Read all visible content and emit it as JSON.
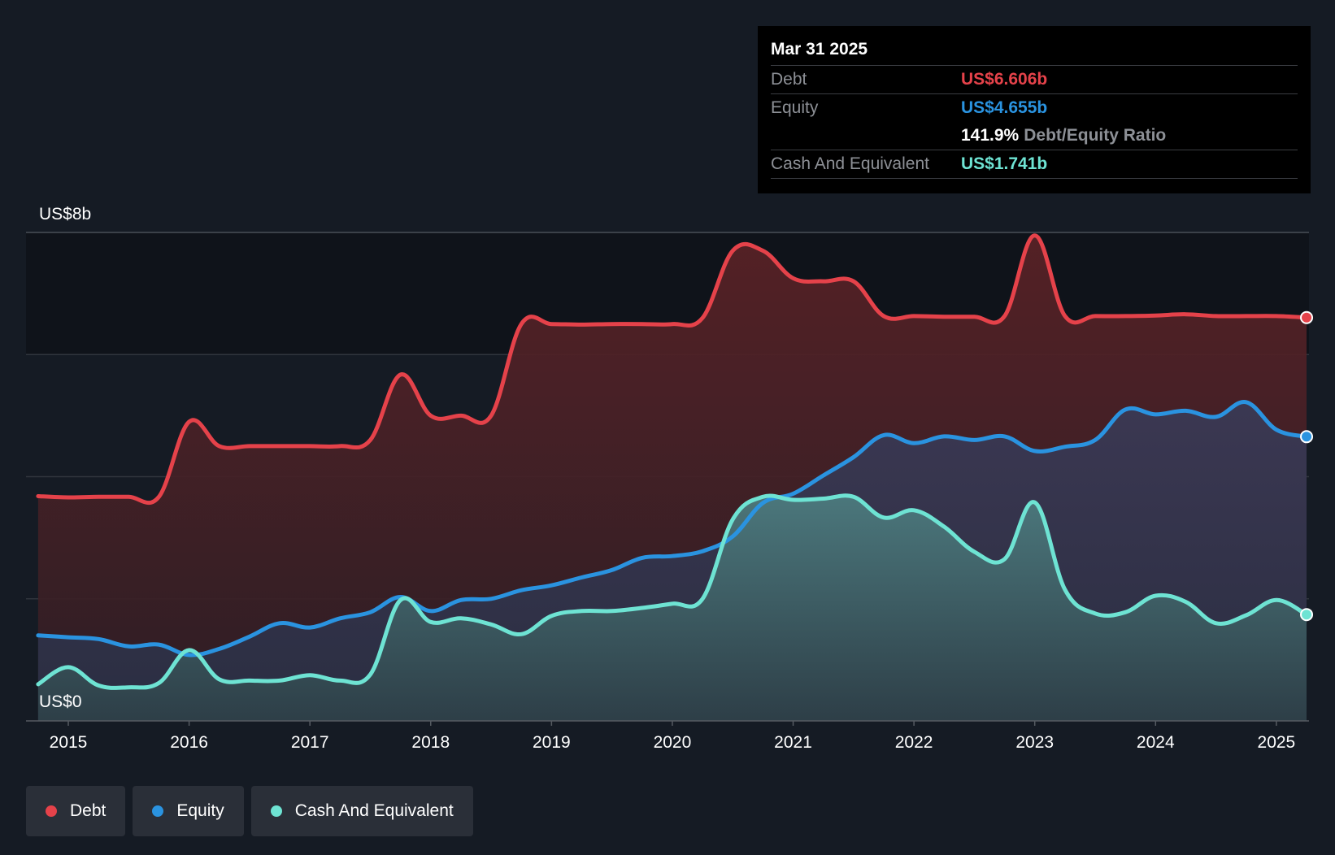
{
  "tooltip": {
    "date": "Mar 31 2025",
    "debt_label": "Debt",
    "debt_value": "US$6.606b",
    "equity_label": "Equity",
    "equity_value": "US$4.655b",
    "ratio_value": "141.9%",
    "ratio_label": "Debt/Equity Ratio",
    "cash_label": "Cash And Equivalent",
    "cash_value": "US$1.741b"
  },
  "legend": [
    {
      "label": "Debt",
      "color": "#e5424a"
    },
    {
      "label": "Equity",
      "color": "#2a93e0"
    },
    {
      "label": "Cash And Equivalent",
      "color": "#6ee3d3"
    }
  ],
  "chart_data": {
    "type": "area",
    "title": "",
    "xlabel": "",
    "ylabel": "",
    "y_top_label": "US$8b",
    "y_bottom_label": "US$0",
    "ylim": [
      0,
      8
    ],
    "xlim": [
      2014.65,
      2025.27
    ],
    "x_ticks": [
      2015,
      2016,
      2017,
      2018,
      2019,
      2020,
      2021,
      2022,
      2023,
      2024,
      2025
    ],
    "grid": true,
    "legend_position": "bottom-left",
    "series": [
      {
        "name": "Debt",
        "color": "#e5424a",
        "points": [
          [
            2014.75,
            3.68
          ],
          [
            2015.0,
            3.66
          ],
          [
            2015.25,
            3.67
          ],
          [
            2015.5,
            3.67
          ],
          [
            2015.75,
            3.67
          ],
          [
            2016.0,
            4.9
          ],
          [
            2016.25,
            4.5
          ],
          [
            2016.5,
            4.5
          ],
          [
            2016.75,
            4.5
          ],
          [
            2017.0,
            4.5
          ],
          [
            2017.25,
            4.5
          ],
          [
            2017.5,
            4.6
          ],
          [
            2017.75,
            5.67
          ],
          [
            2018.0,
            5.0
          ],
          [
            2018.25,
            5.0
          ],
          [
            2018.5,
            5.0
          ],
          [
            2018.75,
            6.5
          ],
          [
            2019.0,
            6.5
          ],
          [
            2019.25,
            6.49
          ],
          [
            2019.5,
            6.5
          ],
          [
            2019.75,
            6.5
          ],
          [
            2020.0,
            6.5
          ],
          [
            2020.25,
            6.6
          ],
          [
            2020.5,
            7.7
          ],
          [
            2020.75,
            7.7
          ],
          [
            2021.0,
            7.25
          ],
          [
            2021.25,
            7.2
          ],
          [
            2021.5,
            7.2
          ],
          [
            2021.75,
            6.63
          ],
          [
            2022.0,
            6.63
          ],
          [
            2022.25,
            6.62
          ],
          [
            2022.5,
            6.62
          ],
          [
            2022.75,
            6.63
          ],
          [
            2023.0,
            7.95
          ],
          [
            2023.25,
            6.63
          ],
          [
            2023.5,
            6.63
          ],
          [
            2023.75,
            6.63
          ],
          [
            2024.0,
            6.64
          ],
          [
            2024.25,
            6.66
          ],
          [
            2024.5,
            6.63
          ],
          [
            2024.75,
            6.63
          ],
          [
            2025.0,
            6.63
          ],
          [
            2025.25,
            6.606
          ]
        ]
      },
      {
        "name": "Equity",
        "color": "#2a93e0",
        "points": [
          [
            2014.75,
            1.4
          ],
          [
            2015.0,
            1.37
          ],
          [
            2015.25,
            1.34
          ],
          [
            2015.5,
            1.22
          ],
          [
            2015.75,
            1.25
          ],
          [
            2016.0,
            1.08
          ],
          [
            2016.25,
            1.18
          ],
          [
            2016.5,
            1.38
          ],
          [
            2016.75,
            1.6
          ],
          [
            2017.0,
            1.53
          ],
          [
            2017.25,
            1.68
          ],
          [
            2017.5,
            1.78
          ],
          [
            2017.75,
            2.03
          ],
          [
            2018.0,
            1.8
          ],
          [
            2018.25,
            1.98
          ],
          [
            2018.5,
            2.0
          ],
          [
            2018.75,
            2.14
          ],
          [
            2019.0,
            2.22
          ],
          [
            2019.25,
            2.35
          ],
          [
            2019.5,
            2.47
          ],
          [
            2019.75,
            2.67
          ],
          [
            2020.0,
            2.7
          ],
          [
            2020.25,
            2.78
          ],
          [
            2020.5,
            3.02
          ],
          [
            2020.75,
            3.57
          ],
          [
            2021.0,
            3.72
          ],
          [
            2021.25,
            4.02
          ],
          [
            2021.5,
            4.32
          ],
          [
            2021.75,
            4.68
          ],
          [
            2022.0,
            4.55
          ],
          [
            2022.25,
            4.66
          ],
          [
            2022.5,
            4.6
          ],
          [
            2022.75,
            4.66
          ],
          [
            2023.0,
            4.42
          ],
          [
            2023.25,
            4.49
          ],
          [
            2023.5,
            4.6
          ],
          [
            2023.75,
            5.1
          ],
          [
            2024.0,
            5.02
          ],
          [
            2024.25,
            5.08
          ],
          [
            2024.5,
            4.98
          ],
          [
            2024.75,
            5.22
          ],
          [
            2025.0,
            4.77
          ],
          [
            2025.25,
            4.655
          ]
        ]
      },
      {
        "name": "Cash And Equivalent",
        "color": "#6ee3d3",
        "points": [
          [
            2014.75,
            0.6
          ],
          [
            2015.0,
            0.88
          ],
          [
            2015.25,
            0.58
          ],
          [
            2015.5,
            0.55
          ],
          [
            2015.75,
            0.62
          ],
          [
            2016.0,
            1.16
          ],
          [
            2016.25,
            0.68
          ],
          [
            2016.5,
            0.66
          ],
          [
            2016.75,
            0.66
          ],
          [
            2017.0,
            0.75
          ],
          [
            2017.25,
            0.66
          ],
          [
            2017.5,
            0.76
          ],
          [
            2017.75,
            1.98
          ],
          [
            2018.0,
            1.62
          ],
          [
            2018.25,
            1.68
          ],
          [
            2018.5,
            1.58
          ],
          [
            2018.75,
            1.42
          ],
          [
            2019.0,
            1.72
          ],
          [
            2019.25,
            1.8
          ],
          [
            2019.5,
            1.8
          ],
          [
            2019.75,
            1.85
          ],
          [
            2020.0,
            1.92
          ],
          [
            2020.25,
            2.0
          ],
          [
            2020.5,
            3.3
          ],
          [
            2020.75,
            3.67
          ],
          [
            2021.0,
            3.62
          ],
          [
            2021.25,
            3.64
          ],
          [
            2021.5,
            3.67
          ],
          [
            2021.75,
            3.33
          ],
          [
            2022.0,
            3.45
          ],
          [
            2022.25,
            3.18
          ],
          [
            2022.5,
            2.77
          ],
          [
            2022.75,
            2.65
          ],
          [
            2023.0,
            3.58
          ],
          [
            2023.25,
            2.15
          ],
          [
            2023.5,
            1.76
          ],
          [
            2023.75,
            1.78
          ],
          [
            2024.0,
            2.05
          ],
          [
            2024.25,
            1.95
          ],
          [
            2024.5,
            1.6
          ],
          [
            2024.75,
            1.73
          ],
          [
            2025.0,
            1.98
          ],
          [
            2025.25,
            1.741
          ]
        ]
      }
    ]
  }
}
